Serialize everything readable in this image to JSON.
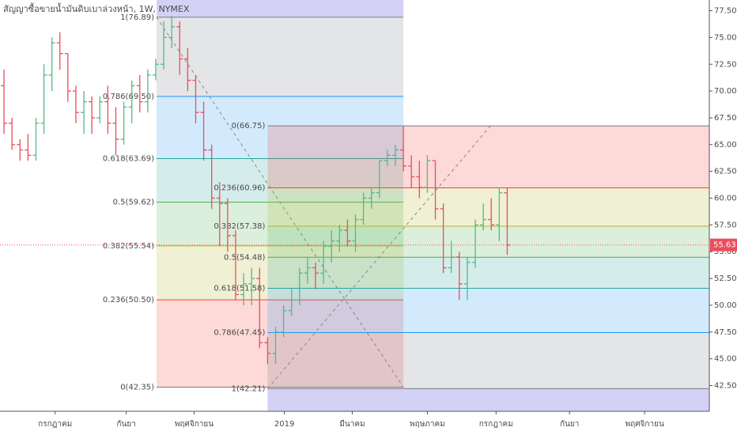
{
  "chart_data": {
    "type": "ohlc",
    "title": "สัญญาซื้อขายน้ำมันดิบเบาล่วงหน้า, 1W, NYMEX",
    "up_color": "#53b987",
    "down_color": "#eb4d5c",
    "open": [
      70.5,
      67,
      65,
      64.5,
      64,
      67,
      71.5,
      74.5,
      73.5,
      70,
      68,
      69,
      67.5,
      69,
      67,
      65.5,
      68.5,
      70.5,
      69,
      71.5,
      72.5,
      75,
      76,
      73,
      71,
      68,
      64.5,
      60,
      59.5,
      56.5,
      51,
      52,
      52.5,
      46.5,
      45.5,
      47.5,
      49.5,
      50.5,
      53,
      53.5,
      53,
      55.5,
      56,
      57,
      56,
      58,
      60,
      60.5,
      63.5,
      64,
      64.5,
      63,
      62,
      61,
      63.5,
      59,
      53.5,
      54.5,
      52,
      54,
      57.5,
      58,
      57.5,
      60.5
    ],
    "high": [
      72,
      67.5,
      65.5,
      66,
      67.5,
      72.5,
      75,
      75.5,
      73.5,
      70.5,
      70,
      69.5,
      69.5,
      70.5,
      68.5,
      69,
      71,
      71.5,
      72,
      73,
      76.5,
      77,
      76.5,
      74,
      71.5,
      69,
      65,
      61.5,
      60,
      57,
      53,
      53.5,
      53.5,
      47,
      48,
      50,
      51.5,
      53.5,
      54.5,
      54,
      56,
      57,
      57.5,
      58,
      58.5,
      60.5,
      61,
      63.5,
      64.5,
      65,
      66.7,
      64,
      63.5,
      64,
      63.5,
      59.5,
      56,
      55,
      54.5,
      58,
      59.5,
      60,
      61,
      61
    ],
    "low": [
      66,
      64.5,
      63.5,
      63.5,
      63.5,
      66,
      70,
      72,
      69,
      67,
      66,
      66,
      67,
      66,
      64,
      65,
      67,
      68,
      68,
      71,
      72,
      74,
      71.5,
      70,
      67,
      63.5,
      59,
      55.5,
      55,
      50.5,
      50,
      50,
      46,
      44.5,
      44.5,
      47,
      49,
      50,
      52,
      51.5,
      52,
      54,
      55,
      55.5,
      55,
      57.5,
      59,
      60,
      63,
      63,
      62.5,
      61,
      60,
      60.5,
      58,
      53,
      53,
      50.5,
      50.5,
      53.5,
      57,
      57,
      56,
      54.7
    ],
    "close": [
      67,
      65,
      64.5,
      64,
      67,
      71.5,
      74.5,
      73.5,
      70,
      68,
      69,
      67.5,
      69,
      67,
      65.5,
      68.5,
      70.5,
      69,
      71.5,
      72.5,
      75,
      76,
      73,
      71,
      68,
      64.5,
      60,
      59.5,
      56.5,
      51,
      52,
      52.5,
      46.5,
      45.5,
      47.5,
      49.5,
      50.5,
      53,
      53.5,
      53,
      55.5,
      56,
      57,
      56,
      58,
      60,
      60.5,
      63.5,
      64,
      64.5,
      63,
      62,
      61,
      63.5,
      59,
      53.5,
      54.5,
      52,
      54,
      57.5,
      58,
      57.5,
      60.5,
      55.63
    ],
    "last_price": 55.63,
    "last_price_color": "#eb4d5c",
    "ylim": [
      40.1,
      78.5
    ],
    "yticks": [
      {
        "value": 42.5,
        "label": "42.50"
      },
      {
        "value": 45,
        "label": "45.00"
      },
      {
        "value": 47.5,
        "label": "47.50"
      },
      {
        "value": 50,
        "label": "50.00"
      },
      {
        "value": 52.5,
        "label": "52.50"
      },
      {
        "value": 55,
        "label": "55.00"
      },
      {
        "value": 57.5,
        "label": "57.50"
      },
      {
        "value": 60,
        "label": "60.00"
      },
      {
        "value": 62.5,
        "label": "62.50"
      },
      {
        "value": 65,
        "label": "65.00"
      },
      {
        "value": 67.5,
        "label": "67.50"
      },
      {
        "value": 70,
        "label": "70.00"
      },
      {
        "value": 72.5,
        "label": "72.50"
      },
      {
        "value": 75,
        "label": "75.00"
      },
      {
        "value": 77.5,
        "label": "77.50"
      }
    ],
    "xlim": [
      -0.5,
      88.3
    ],
    "xticks": [
      {
        "value": 6.4,
        "label": "กรกฎาคม"
      },
      {
        "value": 15.3,
        "label": "กันยา"
      },
      {
        "value": 23.8,
        "label": "พฤศจิกายน"
      },
      {
        "value": 35.1,
        "label": "2019"
      },
      {
        "value": 43.6,
        "label": "มีนาคม"
      },
      {
        "value": 53,
        "label": "พฤษภาคม"
      },
      {
        "value": 61.6,
        "label": "กรกฎาคม"
      },
      {
        "value": 70.8,
        "label": "กันยา"
      },
      {
        "value": 80.2,
        "label": "พฤศจิกายน"
      }
    ],
    "extension_color": "#6f66e0",
    "fibs": [
      {
        "x_start": 19.1,
        "x_end": 50,
        "extend_right": false,
        "levels": [
          {
            "value": 76.89,
            "label": "1(76.89)",
            "color": "#787b86"
          },
          {
            "value": 69.5,
            "label": "0.786(69.50)",
            "color": "#2196f3"
          },
          {
            "value": 63.69,
            "label": "0.618(63.69)",
            "color": "#26a69a"
          },
          {
            "value": 59.62,
            "label": "0.5(59.62)",
            "color": "#4caf50"
          },
          {
            "value": 55.54,
            "label": "0.382(55.54)",
            "color": "#b5b52a"
          },
          {
            "value": 50.5,
            "label": "0.236(50.50)",
            "color": "#f44336"
          },
          {
            "value": 42.35,
            "label": "0(42.35)",
            "color": "#787b86"
          }
        ]
      },
      {
        "x_start": 33,
        "x_end": 60.9,
        "extend_right": true,
        "levels": [
          {
            "value": 42.21,
            "label": "1(42.21)",
            "color": "#787b86"
          },
          {
            "value": 47.45,
            "label": "0.786(47.45)",
            "color": "#2196f3"
          },
          {
            "value": 51.58,
            "label": "0.618(51.58)",
            "color": "#26a69a"
          },
          {
            "value": 54.48,
            "label": "0.5(54.48)",
            "color": "#4caf50"
          },
          {
            "value": 57.38,
            "label": "0.382(57.38)",
            "color": "#b5b52a"
          },
          {
            "value": 60.96,
            "label": "0.236(60.96)",
            "color": "#f44336"
          },
          {
            "value": 66.75,
            "label": "0(66.75)",
            "color": "#787b86"
          }
        ]
      }
    ]
  }
}
